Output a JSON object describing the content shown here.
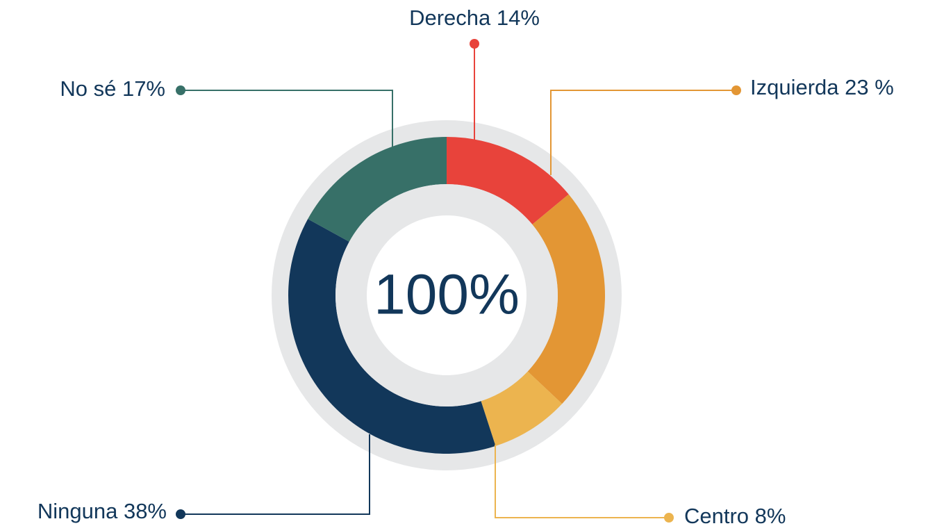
{
  "chart_data": {
    "type": "donut",
    "center_label": "100%",
    "categories": [
      "Derecha",
      "Izquierda",
      "Centro",
      "Ninguna",
      "No sé"
    ],
    "values": [
      14,
      23,
      8,
      38,
      17
    ],
    "value_labels": [
      "14%",
      "23 %",
      "8%",
      "38%",
      "17%"
    ],
    "colors": [
      "#e8433b",
      "#e39634",
      "#ecb44f",
      "#12375a",
      "#377068"
    ]
  }
}
